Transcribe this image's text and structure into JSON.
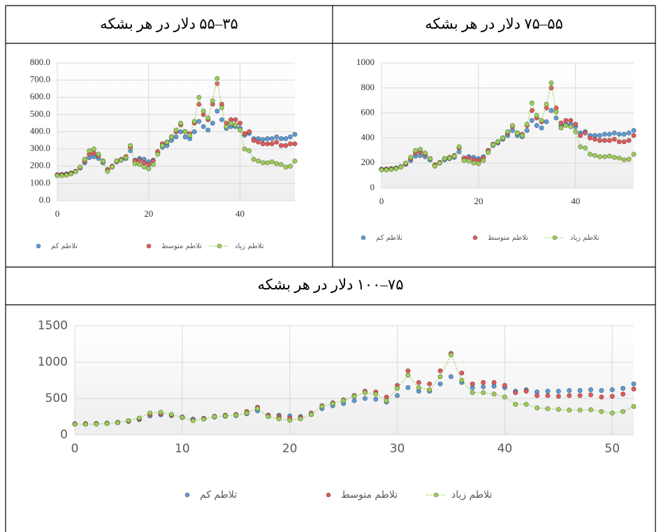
{
  "chart_data": [
    {
      "type": "scatter",
      "title": "۳۵–۵۵ دلار در هر بشکه",
      "x": [
        0,
        1,
        2,
        3,
        4,
        5,
        6,
        7,
        8,
        9,
        10,
        11,
        12,
        13,
        14,
        15,
        16,
        17,
        18,
        19,
        20,
        21,
        22,
        23,
        24,
        25,
        26,
        27,
        28,
        29,
        30,
        31,
        32,
        33,
        34,
        35,
        36,
        37,
        38,
        39,
        40,
        41,
        42,
        43,
        44,
        45,
        46,
        47,
        48,
        49,
        50,
        51,
        52
      ],
      "xlim": [
        0,
        52
      ],
      "xticks": [
        0,
        20,
        40
      ],
      "ylim": [
        0,
        800
      ],
      "yticks": [
        {
          "value": 0,
          "label": "0.0"
        },
        {
          "value": 100,
          "label": "100.0"
        },
        {
          "value": 200,
          "label": "200.0"
        },
        {
          "value": 300,
          "label": "300.0"
        },
        {
          "value": 400,
          "label": "400.0"
        },
        {
          "value": 500,
          "label": "500.0"
        },
        {
          "value": 600,
          "label": "600.0"
        },
        {
          "value": 700,
          "label": "700.0"
        },
        {
          "value": 800,
          "label": "800.0"
        }
      ],
      "grid": true,
      "series": [
        {
          "name": "تلاطم کم",
          "color": "#5b9bd5",
          "values": [
            150,
            152,
            155,
            160,
            170,
            190,
            220,
            250,
            255,
            245,
            220,
            180,
            195,
            225,
            235,
            245,
            290,
            235,
            245,
            240,
            225,
            235,
            280,
            310,
            320,
            350,
            370,
            400,
            370,
            360,
            400,
            460,
            430,
            410,
            450,
            520,
            470,
            420,
            430,
            430,
            420,
            380,
            390,
            360,
            360,
            355,
            360,
            360,
            370,
            360,
            360,
            370,
            385
          ]
        },
        {
          "name": "تلاطم متوسط",
          "color": "#e05a5a",
          "values": [
            150,
            150,
            153,
            158,
            170,
            192,
            230,
            270,
            275,
            260,
            230,
            180,
            200,
            230,
            240,
            255,
            310,
            230,
            235,
            220,
            210,
            230,
            285,
            330,
            340,
            370,
            400,
            440,
            400,
            390,
            450,
            560,
            500,
            470,
            560,
            680,
            560,
            450,
            470,
            470,
            450,
            390,
            400,
            350,
            340,
            330,
            330,
            330,
            340,
            320,
            320,
            330,
            330
          ]
        },
        {
          "name": "تلاطم زیاد",
          "color": "#9ccc58",
          "values": [
            145,
            145,
            148,
            155,
            168,
            195,
            240,
            290,
            300,
            270,
            230,
            170,
            195,
            230,
            235,
            250,
            320,
            215,
            210,
            195,
            185,
            210,
            270,
            320,
            340,
            370,
            410,
            450,
            400,
            380,
            460,
            600,
            520,
            480,
            580,
            710,
            540,
            430,
            450,
            440,
            410,
            300,
            290,
            240,
            230,
            220,
            220,
            225,
            215,
            210,
            195,
            200,
            230
          ]
        }
      ]
    },
    {
      "type": "scatter",
      "title": "۵۵–۷۵ دلار در هر بشکه",
      "x": [
        0,
        1,
        2,
        3,
        4,
        5,
        6,
        7,
        8,
        9,
        10,
        11,
        12,
        13,
        14,
        15,
        16,
        17,
        18,
        19,
        20,
        21,
        22,
        23,
        24,
        25,
        26,
        27,
        28,
        29,
        30,
        31,
        32,
        33,
        34,
        35,
        36,
        37,
        38,
        39,
        40,
        41,
        42,
        43,
        44,
        45,
        46,
        47,
        48,
        49,
        50,
        51,
        52
      ],
      "xlim": [
        0,
        52
      ],
      "xticks": [
        0,
        20,
        40
      ],
      "ylim": [
        0,
        1000
      ],
      "yticks": [
        0,
        200,
        400,
        600,
        800,
        1000
      ],
      "grid": true,
      "series": [
        {
          "name": "تلاطم کم",
          "color": "#5b9bd5",
          "values": [
            150,
            152,
            155,
            160,
            170,
            190,
            220,
            255,
            260,
            250,
            225,
            185,
            200,
            225,
            235,
            245,
            290,
            240,
            250,
            245,
            235,
            250,
            300,
            340,
            360,
            390,
            420,
            460,
            420,
            410,
            460,
            540,
            500,
            480,
            530,
            620,
            560,
            500,
            510,
            510,
            490,
            440,
            450,
            420,
            420,
            420,
            430,
            430,
            440,
            430,
            430,
            440,
            460
          ]
        },
        {
          "name": "تلاطم متوسط",
          "color": "#e05a5a",
          "values": [
            150,
            150,
            153,
            158,
            170,
            195,
            235,
            280,
            290,
            270,
            235,
            185,
            205,
            235,
            245,
            260,
            320,
            240,
            240,
            225,
            220,
            240,
            300,
            350,
            370,
            400,
            440,
            490,
            440,
            430,
            500,
            620,
            560,
            530,
            640,
            800,
            640,
            520,
            540,
            540,
            510,
            420,
            440,
            400,
            390,
            380,
            380,
            380,
            390,
            370,
            370,
            380,
            420
          ]
        },
        {
          "name": "تلاطم زیاد",
          "color": "#9ccc58",
          "values": [
            145,
            145,
            148,
            155,
            168,
            200,
            245,
            300,
            310,
            280,
            235,
            175,
            200,
            235,
            240,
            255,
            330,
            220,
            215,
            200,
            195,
            220,
            285,
            345,
            370,
            400,
            450,
            500,
            440,
            420,
            510,
            680,
            580,
            540,
            670,
            840,
            610,
            480,
            500,
            490,
            450,
            330,
            320,
            270,
            260,
            250,
            250,
            255,
            245,
            240,
            225,
            230,
            270
          ]
        }
      ]
    },
    {
      "type": "scatter",
      "title": "۷۵–۱۰۰ دلار در هر بشکه",
      "x": [
        0,
        1,
        2,
        3,
        4,
        5,
        6,
        7,
        8,
        9,
        10,
        11,
        12,
        13,
        14,
        15,
        16,
        17,
        18,
        19,
        20,
        21,
        22,
        23,
        24,
        25,
        26,
        27,
        28,
        29,
        30,
        31,
        32,
        33,
        34,
        35,
        36,
        37,
        38,
        39,
        40,
        41,
        42,
        43,
        44,
        45,
        46,
        47,
        48,
        49,
        50,
        51,
        52
      ],
      "xlim": [
        0,
        52
      ],
      "xticks": [
        0,
        10,
        20,
        30,
        40,
        50
      ],
      "ylim": [
        0,
        1500
      ],
      "yticks": [
        0,
        500,
        1000,
        1500
      ],
      "grid": true,
      "series": [
        {
          "name": "تلاطم کم",
          "color": "#5b9bd5",
          "values": [
            150,
            152,
            155,
            160,
            170,
            185,
            210,
            260,
            275,
            265,
            245,
            215,
            225,
            245,
            255,
            265,
            290,
            330,
            270,
            270,
            260,
            250,
            280,
            360,
            400,
            430,
            470,
            500,
            490,
            450,
            540,
            650,
            600,
            600,
            700,
            800,
            720,
            650,
            660,
            670,
            650,
            600,
            620,
            590,
            600,
            600,
            610,
            610,
            620,
            610,
            620,
            640,
            700
          ]
        },
        {
          "name": "تلاطم متوسط",
          "color": "#e05a5a",
          "values": [
            150,
            150,
            153,
            158,
            170,
            190,
            220,
            280,
            290,
            270,
            240,
            205,
            225,
            255,
            270,
            280,
            320,
            380,
            270,
            250,
            230,
            240,
            300,
            400,
            440,
            480,
            540,
            600,
            590,
            520,
            680,
            880,
            720,
            700,
            880,
            1120,
            850,
            700,
            720,
            720,
            680,
            580,
            600,
            540,
            540,
            530,
            540,
            540,
            550,
            520,
            530,
            560,
            630
          ]
        },
        {
          "name": "تلاطم زیاد",
          "color": "#9ccc58",
          "values": [
            145,
            145,
            148,
            155,
            168,
            195,
            230,
            300,
            310,
            280,
            240,
            195,
            215,
            250,
            260,
            270,
            300,
            360,
            250,
            220,
            200,
            220,
            280,
            390,
            430,
            470,
            530,
            580,
            560,
            470,
            640,
            820,
            650,
            620,
            800,
            1100,
            750,
            580,
            580,
            560,
            520,
            420,
            420,
            370,
            360,
            350,
            340,
            340,
            345,
            320,
            300,
            320,
            390
          ]
        }
      ]
    }
  ]
}
